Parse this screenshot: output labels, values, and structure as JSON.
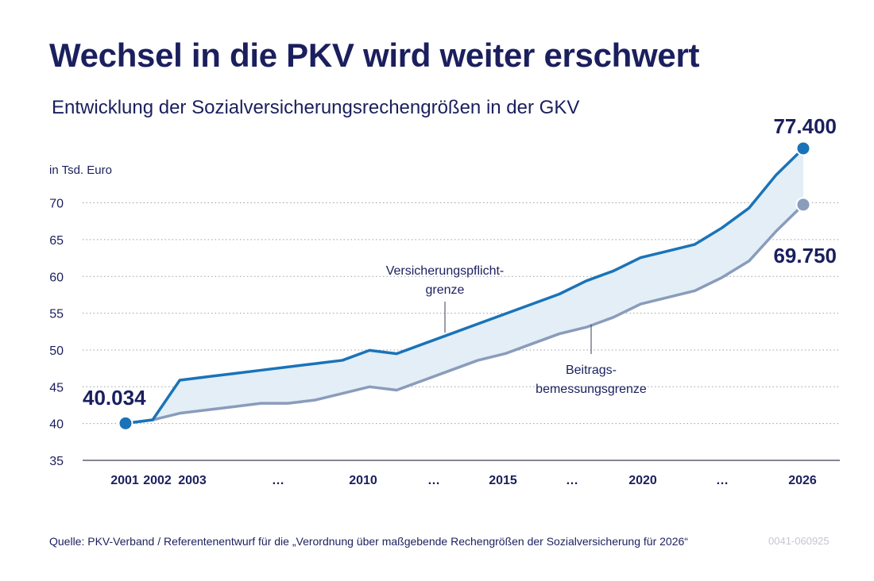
{
  "title": "Wechsel in die PKV wird weiter erschwert",
  "subtitle": "Entwicklung der Sozialversicherungsrechengrößen in der GKV",
  "footer": {
    "source": "Quelle: PKV-Verband / Referentenentwurf für die „Verordnung über maßgebende Rechengrößen der Sozialversicherung für 2026“",
    "code": "0041-060925"
  },
  "colors": {
    "versicherungspflicht": "#1a73b8",
    "beitragsbemessung": "#8a9cbc",
    "band_fill": "#e3eef6",
    "text": "#1b1f5e"
  },
  "chart_data": {
    "type": "line",
    "title": "Wechsel in die PKV wird weiter erschwert",
    "subtitle": "Entwicklung der Sozialversicherungsrechengrößen in der GKV",
    "ylabel": "in Tsd. Euro",
    "ylim": [
      35,
      77.4
    ],
    "yticks": [
      35,
      40,
      45,
      50,
      55,
      60,
      65,
      70
    ],
    "grid": "horizontal dotted",
    "x_tick_labels": [
      "2001",
      "2002",
      "2003",
      "…",
      "2010",
      "…",
      "2015",
      "…",
      "2020",
      "…",
      "2026"
    ],
    "x": [
      2001,
      2002,
      2003,
      2004,
      2005,
      2006,
      2007,
      2008,
      2009,
      2010,
      2011,
      2012,
      2013,
      2014,
      2015,
      2016,
      2017,
      2018,
      2019,
      2020,
      2021,
      2022,
      2023,
      2024,
      2025,
      2026
    ],
    "series": [
      {
        "name": "Versicherungspflicht-grenze",
        "label_lines": [
          "Versicherungspflicht-",
          "grenze"
        ],
        "values": [
          40.034,
          40.5,
          45.9,
          46.35,
          46.8,
          47.25,
          47.7,
          48.15,
          48.6,
          49.95,
          49.5,
          50.85,
          52.2,
          53.55,
          54.9,
          56.25,
          57.6,
          59.4,
          60.75,
          62.55,
          63.45,
          64.35,
          66.6,
          69.3,
          73.8,
          77.4
        ]
      },
      {
        "name": "Beitrags-bemessungsgrenze",
        "label_lines": [
          "Beitrags-",
          "bemessungsgrenze"
        ],
        "values": [
          40.034,
          40.5,
          41.4,
          41.85,
          42.3,
          42.75,
          42.75,
          43.2,
          44.1,
          45.0,
          44.55,
          45.9,
          47.25,
          48.6,
          49.5,
          50.85,
          52.2,
          53.1,
          54.45,
          56.25,
          57.15,
          58.05,
          59.85,
          62.1,
          66.15,
          69.75
        ]
      }
    ],
    "highlighted_values": {
      "start": "40.034",
      "end_versicherungspflicht": "77.400",
      "end_beitragsbemessung": "69.750"
    }
  }
}
